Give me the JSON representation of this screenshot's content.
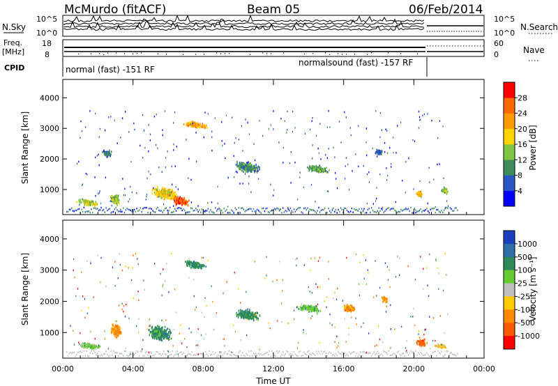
{
  "header": {
    "site": "McMurdo (fitACF)",
    "beam": "Beam 05",
    "date": "06/Feb/2014"
  },
  "status_panels": {
    "nsky_label": "N.Sky",
    "nsky_ticks": [
      "10^5",
      "10^0"
    ],
    "nsearch_label": "N.Search",
    "freq_label": [
      "Freq.",
      "[MHz]"
    ],
    "freq_ticks": [
      "18",
      "8"
    ],
    "nave_label": "Nave",
    "nave_ticks": [
      "60",
      "0"
    ],
    "cpid_label": "CPID",
    "cpid_segments": [
      "normal (fast) -151 RF",
      "normalsound (fast) -157 RF"
    ]
  },
  "chart_data": [
    {
      "type": "heatmap",
      "title": "",
      "ylabel": "Slant Range [km]",
      "xlabel": "",
      "ylim": [
        180,
        4600
      ],
      "xlim": [
        0,
        24
      ],
      "y_ticks": [
        1000,
        2000,
        3000,
        4000
      ],
      "x_tick_labels": [
        "00:00",
        "04:00",
        "08:00",
        "12:00",
        "16:00",
        "20:00",
        "00:00"
      ],
      "colorbar": {
        "label": "Power [dB]",
        "ticks": [
          "4",
          "8",
          "12",
          "16",
          "20",
          "24",
          "28"
        ],
        "colors": [
          "#0000ff",
          "#2a56c6",
          "#3d8c5a",
          "#7fc645",
          "#ffd400",
          "#ff9a00",
          "#ff6a00",
          "#ff0000"
        ]
      },
      "blobs": [
        {
          "t": 1.4,
          "r": 600,
          "dt": 1.2,
          "dr": 200,
          "v": 16
        },
        {
          "t": 3.0,
          "r": 700,
          "dt": 0.7,
          "dr": 350,
          "v": 14
        },
        {
          "t": 5.8,
          "r": 900,
          "dt": 1.6,
          "dr": 400,
          "v": 18
        },
        {
          "t": 6.7,
          "r": 650,
          "dt": 1.0,
          "dr": 300,
          "v": 26
        },
        {
          "t": 7.5,
          "r": 3150,
          "dt": 1.5,
          "dr": 200,
          "v": 22
        },
        {
          "t": 2.5,
          "r": 2200,
          "dt": 0.6,
          "dr": 250,
          "v": 8
        },
        {
          "t": 10.5,
          "r": 1750,
          "dt": 1.5,
          "dr": 350,
          "v": 10
        },
        {
          "t": 14.5,
          "r": 1700,
          "dt": 1.4,
          "dr": 250,
          "v": 12
        },
        {
          "t": 18.0,
          "r": 2250,
          "dt": 0.5,
          "dr": 200,
          "v": 7
        },
        {
          "t": 20.3,
          "r": 900,
          "dt": 0.4,
          "dr": 250,
          "v": 20
        },
        {
          "t": 21.7,
          "r": 1000,
          "dt": 0.4,
          "dr": 200,
          "v": 14
        }
      ]
    },
    {
      "type": "heatmap",
      "title": "",
      "ylabel": "Slant Range [km]",
      "xlabel": "Time UT",
      "ylim": [
        180,
        4600
      ],
      "xlim": [
        0,
        24
      ],
      "y_ticks": [
        1000,
        2000,
        3000,
        4000
      ],
      "x_tick_labels": [
        "00:00",
        "04:00",
        "08:00",
        "12:00",
        "16:00",
        "20:00",
        "00:00"
      ],
      "colorbar": {
        "label": "Velocity [m s⁻¹]",
        "ticks": [
          "1000",
          "500",
          "100",
          "25",
          "-25",
          "-100",
          "-500",
          "-1000"
        ],
        "colors": [
          "#1a3fbf",
          "#2e6fa7",
          "#2f8a5a",
          "#66cc33",
          "#c0c0c0",
          "#ffcc00",
          "#ff8a00",
          "#ff5a00",
          "#ff0000"
        ]
      },
      "blobs": [
        {
          "t": 1.5,
          "r": 600,
          "dt": 1.3,
          "dr": 200,
          "v": 3
        },
        {
          "t": 3.0,
          "r": 1100,
          "dt": 0.7,
          "dr": 450,
          "v": 6
        },
        {
          "t": 5.5,
          "r": 1000,
          "dt": 1.4,
          "dr": 500,
          "v": 2
        },
        {
          "t": 7.5,
          "r": 3200,
          "dt": 1.4,
          "dr": 250,
          "v": 2
        },
        {
          "t": 10.5,
          "r": 1600,
          "dt": 1.5,
          "dr": 350,
          "v": 2
        },
        {
          "t": 14.0,
          "r": 1800,
          "dt": 1.3,
          "dr": 250,
          "v": 3
        },
        {
          "t": 16.3,
          "r": 1800,
          "dt": 0.8,
          "dr": 250,
          "v": 6
        },
        {
          "t": 18.3,
          "r": 2100,
          "dt": 0.5,
          "dr": 200,
          "v": 6
        },
        {
          "t": 20.4,
          "r": 700,
          "dt": 0.6,
          "dr": 300,
          "v": 7
        },
        {
          "t": 21.5,
          "r": 600,
          "dt": 0.7,
          "dr": 150,
          "v": 5
        }
      ]
    }
  ]
}
